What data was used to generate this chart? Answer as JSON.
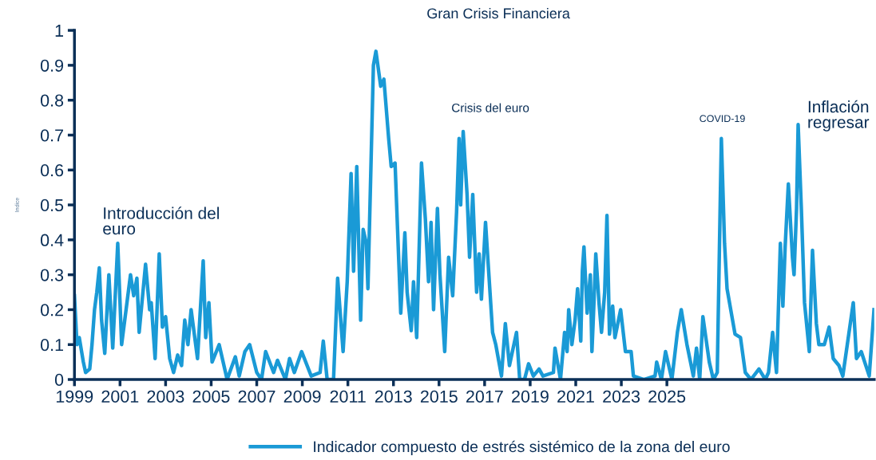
{
  "chart_data": {
    "type": "line",
    "ylabel": "Indice",
    "annotations": [
      "Gran Crisis Financiera",
      "Introducción del\neuro",
      "Crisis del euro",
      "COVID-19",
      "Inflación\nregresar"
    ],
    "xlim": [
      1999,
      2034.1
    ],
    "xticks": [
      1999,
      2001,
      2003,
      2005,
      2007,
      2009,
      2011,
      2013,
      2015,
      2017,
      2019,
      2021,
      2023,
      2025
    ],
    "ylim": [
      0,
      1
    ],
    "yticks": [
      0,
      0.1,
      0.2,
      0.3,
      0.4,
      0.5,
      0.6,
      0.7,
      0.8,
      0.9,
      1
    ],
    "grid": false,
    "legend": "bottom",
    "marker": "none",
    "line_style": "solid",
    "series": [
      {
        "name": "Indicador compuesto de estrés sistémico de la zona del euro",
        "color": "#1a9ad6",
        "x": [
          1999.0,
          1999.11,
          1999.21,
          1999.39,
          1999.49,
          1999.67,
          1999.77,
          1999.88,
          1999.98,
          2000.09,
          2000.19,
          2000.33,
          2000.51,
          2000.68,
          2000.9,
          2001.07,
          2001.46,
          2001.6,
          2001.74,
          2001.84,
          2002.12,
          2002.3,
          2002.37,
          2002.54,
          2002.72,
          2002.86,
          2003.0,
          2003.18,
          2003.35,
          2003.53,
          2003.7,
          2003.84,
          2003.98,
          2004.12,
          2004.4,
          2004.65,
          2004.76,
          2004.9,
          2005.04,
          2005.35,
          2005.7,
          2006.06,
          2006.23,
          2006.48,
          2006.69,
          2007.0,
          2007.21,
          2007.39,
          2007.74,
          2007.91,
          2008.26,
          2008.44,
          2008.65,
          2008.97,
          2009.39,
          2009.78,
          2009.92,
          2010.09,
          2010.37,
          2010.55,
          2010.79,
          2010.97,
          2011.14,
          2011.25,
          2011.39,
          2011.56,
          2011.67,
          2011.81,
          2011.88,
          2012.12,
          2012.23,
          2012.44,
          2012.58,
          2012.79,
          2012.9,
          2013.07,
          2013.18,
          2013.32,
          2013.5,
          2013.6,
          2013.78,
          2013.88,
          2014.02,
          2014.23,
          2014.4,
          2014.54,
          2014.65,
          2014.76,
          2014.93,
          2015.04,
          2015.25,
          2015.42,
          2015.6,
          2015.77,
          2015.88,
          2015.95,
          2016.06,
          2016.23,
          2016.34,
          2016.48,
          2016.65,
          2016.76,
          2016.86,
          2017.04,
          2017.35,
          2017.49,
          2017.74,
          2017.91,
          2018.09,
          2018.4,
          2018.54,
          2018.75,
          2018.93,
          2019.14,
          2019.39,
          2019.56,
          2020.02,
          2020.09,
          2020.33,
          2020.51,
          2020.62,
          2020.69,
          2020.83,
          2020.97,
          2021.08,
          2021.22,
          2021.29,
          2021.36,
          2021.5,
          2021.64,
          2021.71,
          2021.78,
          2021.88,
          2022.02,
          2022.13,
          2022.27,
          2022.37,
          2022.48,
          2022.62,
          2022.72,
          2022.97,
          2023.18,
          2023.43,
          2023.53,
          2023.99,
          2024.48,
          2024.55,
          2024.76,
          2024.94,
          2025.22,
          2025.46,
          2025.63,
          2025.88,
          2026.16,
          2026.3,
          2026.44,
          2026.58,
          2026.86,
          2027.04,
          2027.21,
          2027.39,
          2027.53,
          2027.64,
          2027.99,
          2028.23,
          2028.44,
          2028.69,
          2029.04,
          2029.32,
          2029.46,
          2029.64,
          2029.81,
          2029.98,
          2030.09,
          2030.19,
          2030.33,
          2030.51,
          2030.58,
          2030.69,
          2030.76,
          2030.9,
          2031.04,
          2031.25,
          2031.39,
          2031.56,
          2031.67,
          2031.91,
          2032.12,
          2032.3,
          2032.55,
          2032.72,
          2033.18,
          2033.32,
          2033.53,
          2033.88,
          2034.09
        ],
        "values": [
          0.24,
          0.1,
          0.12,
          0.05,
          0.02,
          0.03,
          0.1,
          0.2,
          0.25,
          0.32,
          0.17,
          0.075,
          0.3,
          0.09,
          0.39,
          0.1,
          0.3,
          0.24,
          0.29,
          0.135,
          0.33,
          0.2,
          0.22,
          0.06,
          0.36,
          0.15,
          0.18,
          0.06,
          0.02,
          0.07,
          0.04,
          0.17,
          0.1,
          0.2,
          0.06,
          0.34,
          0.12,
          0.22,
          0.05,
          0.1,
          0.0,
          0.065,
          0.01,
          0.08,
          0.1,
          0.02,
          0.0,
          0.08,
          0.02,
          0.055,
          0.0,
          0.06,
          0.02,
          0.08,
          0.01,
          0.02,
          0.11,
          0.0,
          0.0,
          0.29,
          0.08,
          0.28,
          0.59,
          0.31,
          0.61,
          0.17,
          0.43,
          0.39,
          0.26,
          0.9,
          0.94,
          0.84,
          0.86,
          0.69,
          0.61,
          0.62,
          0.43,
          0.19,
          0.42,
          0.25,
          0.14,
          0.28,
          0.12,
          0.62,
          0.46,
          0.28,
          0.45,
          0.2,
          0.49,
          0.3,
          0.08,
          0.35,
          0.24,
          0.48,
          0.69,
          0.5,
          0.71,
          0.53,
          0.35,
          0.53,
          0.25,
          0.36,
          0.23,
          0.45,
          0.135,
          0.1,
          0.01,
          0.16,
          0.04,
          0.135,
          0.0,
          0.0,
          0.045,
          0.01,
          0.03,
          0.01,
          0.02,
          0.09,
          0.0,
          0.135,
          0.08,
          0.2,
          0.1,
          0.17,
          0.26,
          0.11,
          0.31,
          0.38,
          0.19,
          0.3,
          0.08,
          0.19,
          0.36,
          0.22,
          0.135,
          0.25,
          0.47,
          0.13,
          0.21,
          0.12,
          0.2,
          0.08,
          0.08,
          0.01,
          0.0,
          0.01,
          0.05,
          0.0,
          0.08,
          0.0,
          0.135,
          0.2,
          0.1,
          0.01,
          0.09,
          0.0,
          0.18,
          0.05,
          0.0,
          0.02,
          0.69,
          0.39,
          0.26,
          0.13,
          0.12,
          0.02,
          0.0,
          0.03,
          0.0,
          0.02,
          0.135,
          0.02,
          0.39,
          0.21,
          0.38,
          0.56,
          0.35,
          0.3,
          0.49,
          0.73,
          0.49,
          0.22,
          0.08,
          0.37,
          0.16,
          0.1,
          0.1,
          0.15,
          0.06,
          0.04,
          0.01,
          0.22,
          0.06,
          0.08,
          0.01,
          0.2
        ]
      }
    ]
  }
}
